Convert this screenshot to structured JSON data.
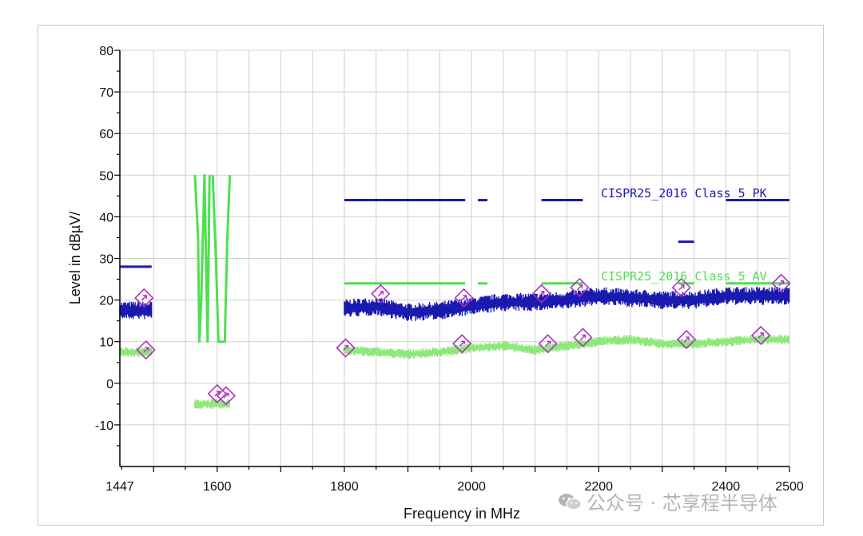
{
  "chart_data": {
    "type": "line",
    "xlabel": "Frequency in MHz",
    "ylabel": "Level in dBµV/",
    "xlim": [
      1447,
      2500
    ],
    "ylim": [
      -20,
      80
    ],
    "x_axis_scale": "linear",
    "x_tick_labels": [
      {
        "value": 1447,
        "label": "1447"
      },
      {
        "value": 1600,
        "label": "1600"
      },
      {
        "value": 1800,
        "label": "1800"
      },
      {
        "value": 2000,
        "label": "2000"
      },
      {
        "value": 2200,
        "label": "2200"
      },
      {
        "value": 2400,
        "label": "2400"
      },
      {
        "value": 2500,
        "label": "2500"
      }
    ],
    "y_ticks": [
      -10,
      0,
      10,
      20,
      30,
      40,
      50,
      60,
      70,
      80
    ],
    "grid": true,
    "limit_lines": [
      {
        "name": "CISPR25_2016 Class 5 PK",
        "label": "CISPR25_2016 Class 5 PK",
        "color": "#1a1ab0",
        "segments": [
          {
            "x": [
              1447,
              1497
            ],
            "y": 28
          },
          {
            "x": [
              1800,
              1990
            ],
            "y": 44
          },
          {
            "x": [
              2010,
              2025
            ],
            "y": 44
          },
          {
            "x": [
              2110,
              2175
            ],
            "y": 44
          },
          {
            "x": [
              2325,
              2350
            ],
            "y": 34
          },
          {
            "x": [
              2400,
              2500
            ],
            "y": 44
          }
        ]
      },
      {
        "name": "CISPR25_2016 Class 5 AV",
        "label": "CISPR25_2016 Class 5 AV",
        "color": "#4ee04e",
        "segments": [
          {
            "x": [
              1447,
              1497
            ],
            "y": 18
          },
          {
            "x": [
              1800,
              1990
            ],
            "y": 24
          },
          {
            "x": [
              2010,
              2025
            ],
            "y": 24
          },
          {
            "x": [
              2110,
              2175
            ],
            "y": 24
          },
          {
            "x": [
              2325,
              2350
            ],
            "y": 24
          },
          {
            "x": [
              2400,
              2500
            ],
            "y": 24
          }
        ]
      }
    ],
    "series": [
      {
        "name": "PK",
        "color": "#1a1ab0",
        "style": "noisy-band",
        "segments": [
          {
            "x": [
              1447,
              1497
            ],
            "y": [
              17.5,
              17.5
            ]
          },
          {
            "x": [
              1800,
              1850,
              1900,
              1950,
              2000,
              2050,
              2100,
              2150,
              2200,
              2250,
              2300,
              2350,
              2400,
              2450,
              2500
            ],
            "y": [
              18,
              18.5,
              17,
              17.5,
              18.5,
              19.5,
              19.5,
              20,
              21,
              20.5,
              20,
              20,
              21,
              21,
              21
            ]
          }
        ]
      },
      {
        "name": "AV",
        "color": "#8fe87a",
        "style": "noisy-band",
        "segments": [
          {
            "x": [
              1447,
              1497
            ],
            "y": [
              7.5,
              7.5
            ]
          },
          {
            "x": [
              1565,
              1620
            ],
            "y": [
              -5,
              -5
            ]
          },
          {
            "x": [
              1800,
              1850,
              1900,
              1950,
              2000,
              2050,
              2100,
              2150,
              2200,
              2250,
              2300,
              2350,
              2400,
              2450,
              2500
            ],
            "y": [
              8,
              7.5,
              7,
              7.5,
              8.5,
              9,
              8,
              9,
              10,
              10.5,
              9.5,
              9.5,
              10,
              10.5,
              10.5
            ]
          }
        ]
      },
      {
        "name": "AV-band-trace",
        "color": "#4ee04e",
        "style": "outline",
        "segments": [
          {
            "x": [
              1565,
              1570,
              1572,
              1575,
              1580,
              1585,
              1588
            ],
            "y": [
              50,
              35,
              10,
              20,
              50,
              10,
              50
            ]
          },
          {
            "x": [
              1593,
              1598,
              1602,
              1606,
              1612,
              1616,
              1620
            ],
            "y": [
              50,
              30,
              10,
              10,
              10,
              35,
              50
            ]
          }
        ]
      }
    ],
    "markers": [
      {
        "x": 1485,
        "y": 20.5
      },
      {
        "x": 1488,
        "y": 8
      },
      {
        "x": 1600,
        "y": -2.5
      },
      {
        "x": 1614,
        "y": -3
      },
      {
        "x": 1802,
        "y": 8.5
      },
      {
        "x": 1857,
        "y": 21.5
      },
      {
        "x": 1985,
        "y": 9.5
      },
      {
        "x": 1988,
        "y": 20.5
      },
      {
        "x": 2110,
        "y": 21.5
      },
      {
        "x": 2120,
        "y": 9.5
      },
      {
        "x": 2170,
        "y": 23
      },
      {
        "x": 2175,
        "y": 11
      },
      {
        "x": 2330,
        "y": 23
      },
      {
        "x": 2338,
        "y": 10.5
      },
      {
        "x": 2455,
        "y": 11.5
      },
      {
        "x": 2487,
        "y": 24
      }
    ],
    "marker_color": "#b030c0"
  },
  "watermark": {
    "text": "公众号 · 芯享程半导体",
    "icon": "wechat-icon"
  }
}
